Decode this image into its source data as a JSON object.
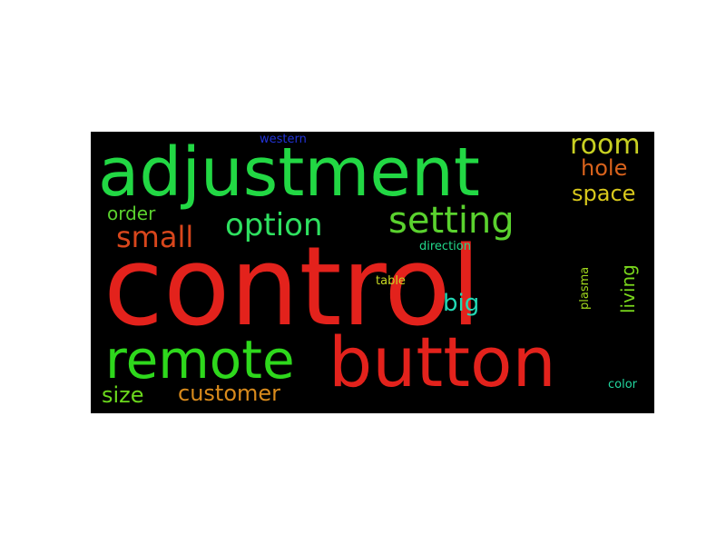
{
  "words": [
    {
      "key": "control",
      "text": "control",
      "color": "#e3221c"
    },
    {
      "key": "adjustment",
      "text": "adjustment",
      "color": "#22d844"
    },
    {
      "key": "button",
      "text": "button",
      "color": "#e3221c"
    },
    {
      "key": "remote",
      "text": "remote",
      "color": "#2ed81c"
    },
    {
      "key": "setting",
      "text": "setting",
      "color": "#5ad22e"
    },
    {
      "key": "option",
      "text": "option",
      "color": "#2ee060"
    },
    {
      "key": "small",
      "text": "small",
      "color": "#d8461c"
    },
    {
      "key": "room",
      "text": "room",
      "color": "#c8d022"
    },
    {
      "key": "hole",
      "text": "hole",
      "color": "#d8621c"
    },
    {
      "key": "space",
      "text": "space",
      "color": "#d8c81c"
    },
    {
      "key": "order",
      "text": "order",
      "color": "#5ad22e"
    },
    {
      "key": "big",
      "text": "big",
      "color": "#22d8b4"
    },
    {
      "key": "customer",
      "text": "customer",
      "color": "#d88a1c"
    },
    {
      "key": "size",
      "text": "size",
      "color": "#6ad81c"
    },
    {
      "key": "living",
      "text": "living",
      "color": "#7ad81c"
    },
    {
      "key": "plasma",
      "text": "plasma",
      "color": "#a0d81c"
    },
    {
      "key": "western",
      "text": "western",
      "color": "#2233d8"
    },
    {
      "key": "direction",
      "text": "direction",
      "color": "#22d88a"
    },
    {
      "key": "table",
      "text": "table",
      "color": "#c8d822"
    },
    {
      "key": "color",
      "text": "color",
      "color": "#22d8a0"
    }
  ]
}
